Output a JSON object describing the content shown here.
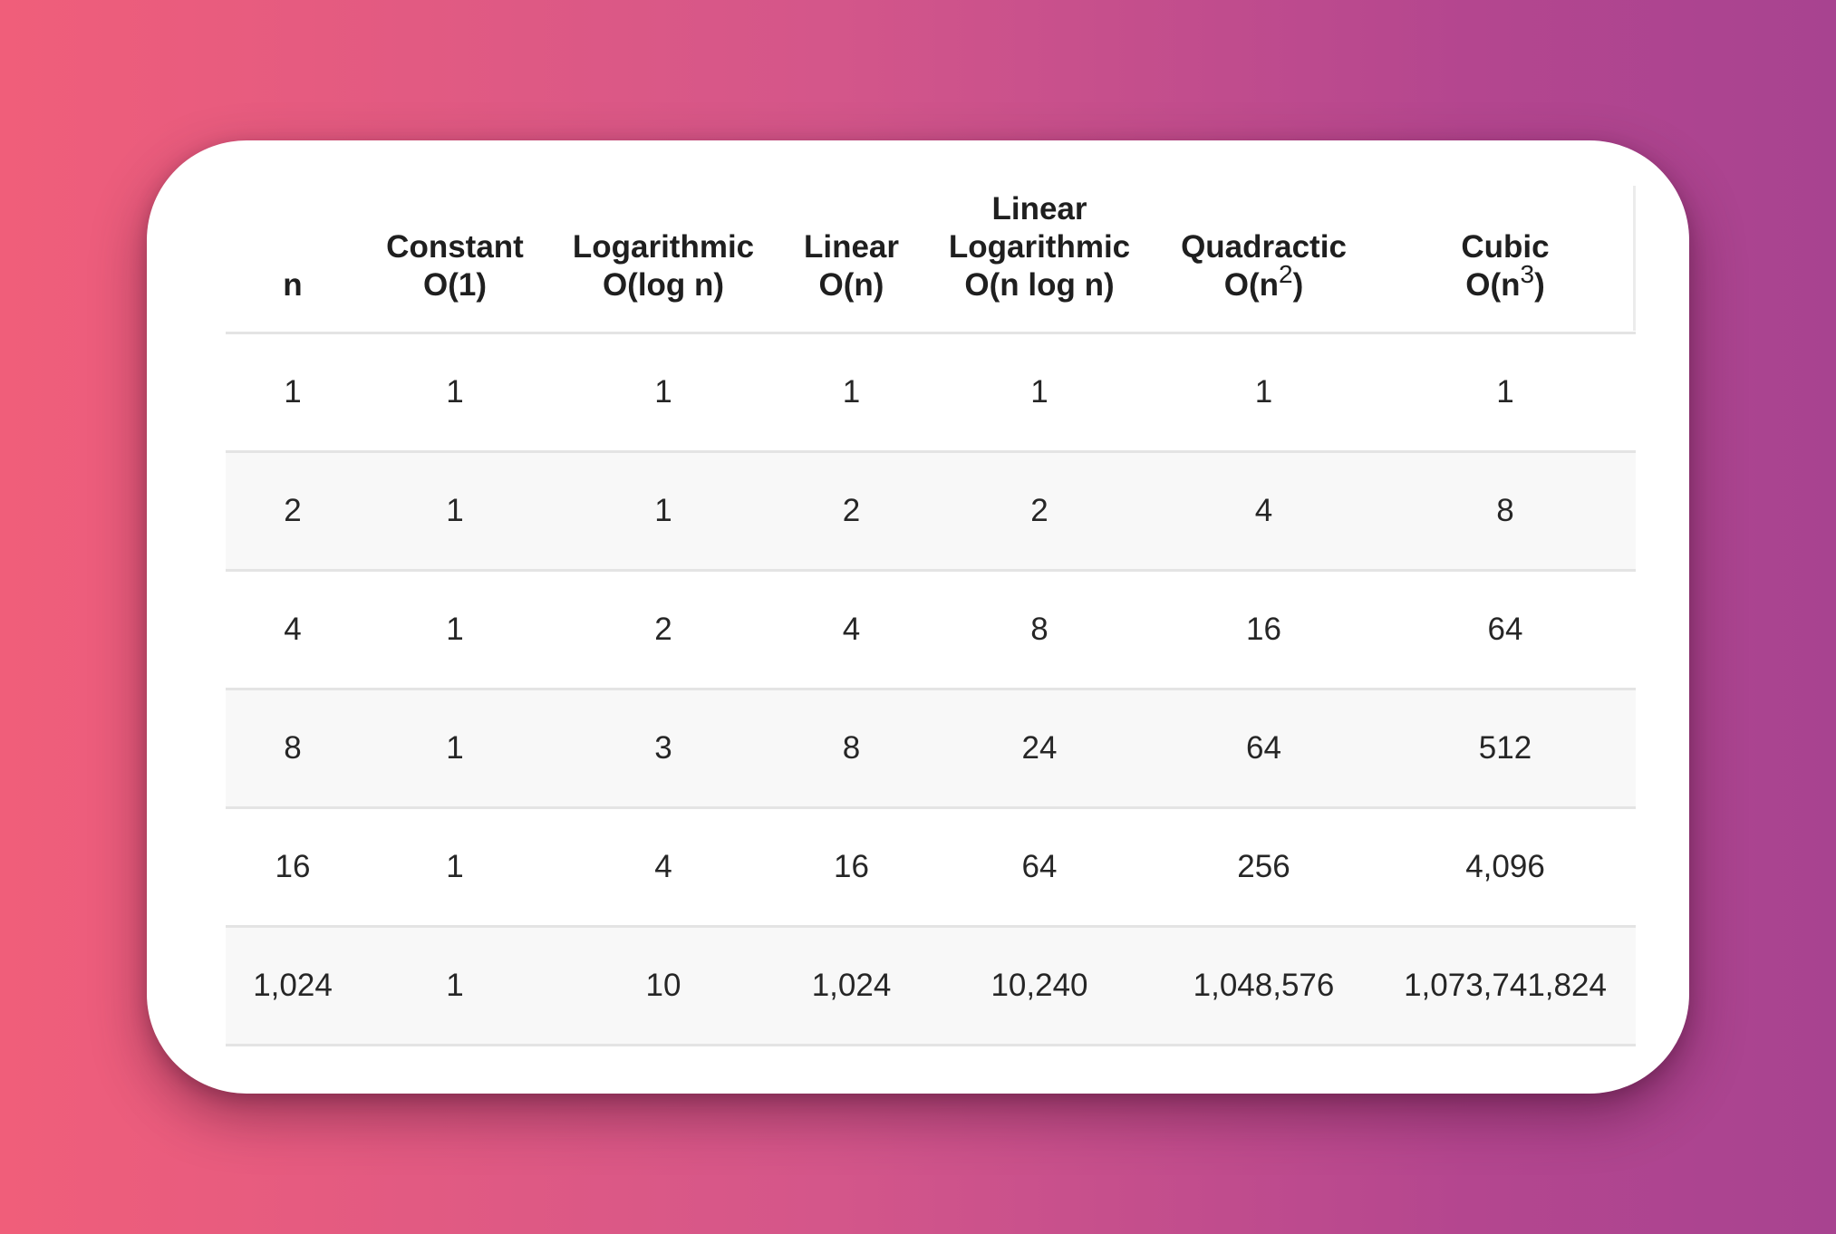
{
  "table": {
    "columns": [
      {
        "lines": [
          "n"
        ]
      },
      {
        "lines": [
          "Constant",
          "O(1)"
        ]
      },
      {
        "lines": [
          "Logarithmic",
          "O(log n)"
        ]
      },
      {
        "lines": [
          "Linear",
          "O(n)"
        ]
      },
      {
        "lines": [
          "Linear",
          "Logarithmic",
          "O(n log n)"
        ]
      },
      {
        "lines": [
          "Quadractic",
          "O(n"
        ],
        "sup": "2",
        "suffix": ")"
      },
      {
        "lines": [
          "Cubic",
          "O(n"
        ],
        "sup": "3",
        "suffix": ")"
      }
    ],
    "rows": [
      [
        "1",
        "1",
        "1",
        "1",
        "1",
        "1",
        "1"
      ],
      [
        "2",
        "1",
        "1",
        "2",
        "2",
        "4",
        "8"
      ],
      [
        "4",
        "1",
        "2",
        "4",
        "8",
        "16",
        "64"
      ],
      [
        "8",
        "1",
        "3",
        "8",
        "24",
        "64",
        "512"
      ],
      [
        "16",
        "1",
        "4",
        "16",
        "64",
        "256",
        "4,096"
      ],
      [
        "1,024",
        "1",
        "10",
        "1,024",
        "10,240",
        "1,048,576",
        "1,073,741,824"
      ]
    ]
  }
}
